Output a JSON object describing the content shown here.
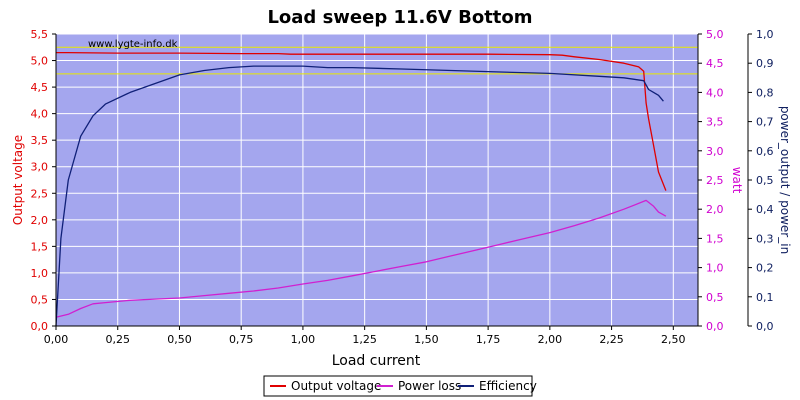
{
  "chart_data": {
    "type": "line",
    "title": "Load sweep 11.6V Bottom",
    "watermark": "www.lygte-info.dk",
    "xlabel": "Load current",
    "ylabel_left": "Output voltage",
    "ylabel_right1": "watt",
    "ylabel_right2": "power_output / power_in",
    "xlim": [
      0,
      2.6
    ],
    "ylim_left": [
      0,
      5.5
    ],
    "ylim_right1": [
      0,
      5.0
    ],
    "ylim_right2": [
      0,
      1.0
    ],
    "x_ticks": [
      "0,00",
      "0,25",
      "0,50",
      "0,75",
      "1,00",
      "1,25",
      "1,50",
      "1,75",
      "2,00",
      "2,25",
      "2,50"
    ],
    "y_left_ticks": [
      "0,0",
      "0,5",
      "1,0",
      "1,5",
      "2,0",
      "2,5",
      "3,0",
      "3,5",
      "4,0",
      "4,5",
      "5,0",
      "5,5"
    ],
    "y_right1_ticks": [
      "0,0",
      "0,5",
      "1,0",
      "1,5",
      "2,0",
      "2,5",
      "3,0",
      "3,5",
      "4,0",
      "4,5",
      "5,0"
    ],
    "y_right2_ticks": [
      "0,0",
      "0,1",
      "0,2",
      "0,3",
      "0,4",
      "0,5",
      "0,6",
      "0,7",
      "0,8",
      "0,9",
      "1,0"
    ],
    "reference_lines_left": [
      5.25,
      4.75
    ],
    "grid": true,
    "legend_position": "bottom",
    "colors": {
      "plot_bg": "#a4a6ee",
      "grid": "#ffffff",
      "reference": "#e8e800",
      "voltage": "#e00000",
      "power": "#d020d0",
      "efficiency": "#102078",
      "left_axis": "#e00000",
      "right1_axis": "#d000d0",
      "right2_axis": "#102060"
    },
    "series": [
      {
        "name": "Output voltage",
        "axis": "left",
        "x": [
          0.0,
          0.05,
          0.25,
          0.5,
          0.75,
          0.9,
          0.95,
          1.0,
          1.25,
          1.5,
          1.75,
          2.0,
          2.05,
          2.1,
          2.2,
          2.3,
          2.36,
          2.38,
          2.39,
          2.4,
          2.42,
          2.44,
          2.47
        ],
        "y": [
          5.15,
          5.15,
          5.14,
          5.14,
          5.13,
          5.13,
          5.12,
          5.12,
          5.12,
          5.12,
          5.12,
          5.11,
          5.1,
          5.07,
          5.02,
          4.95,
          4.88,
          4.8,
          4.2,
          3.9,
          3.4,
          2.9,
          2.55
        ]
      },
      {
        "name": "Power loss",
        "axis": "right1",
        "x": [
          0.0,
          0.05,
          0.1,
          0.15,
          0.2,
          0.3,
          0.4,
          0.5,
          0.6,
          0.7,
          0.8,
          0.9,
          1.0,
          1.1,
          1.2,
          1.3,
          1.4,
          1.5,
          1.6,
          1.7,
          1.8,
          1.9,
          2.0,
          2.1,
          2.2,
          2.3,
          2.39,
          2.42,
          2.44,
          2.47
        ],
        "y": [
          0.15,
          0.2,
          0.3,
          0.38,
          0.4,
          0.44,
          0.46,
          0.48,
          0.52,
          0.56,
          0.6,
          0.65,
          0.72,
          0.78,
          0.86,
          0.94,
          1.02,
          1.1,
          1.2,
          1.3,
          1.4,
          1.5,
          1.6,
          1.72,
          1.85,
          2.0,
          2.15,
          2.05,
          1.95,
          1.88
        ]
      },
      {
        "name": "Efficiency",
        "axis": "right2",
        "x": [
          0.0,
          0.02,
          0.05,
          0.1,
          0.15,
          0.2,
          0.3,
          0.4,
          0.5,
          0.6,
          0.7,
          0.8,
          0.9,
          1.0,
          1.1,
          1.2,
          1.4,
          1.6,
          1.8,
          2.0,
          2.2,
          2.3,
          2.38,
          2.4,
          2.42,
          2.44,
          2.46
        ],
        "y": [
          0.0,
          0.3,
          0.5,
          0.65,
          0.72,
          0.76,
          0.8,
          0.83,
          0.86,
          0.875,
          0.885,
          0.89,
          0.89,
          0.89,
          0.885,
          0.885,
          0.88,
          0.875,
          0.87,
          0.865,
          0.855,
          0.85,
          0.84,
          0.81,
          0.8,
          0.79,
          0.77
        ]
      }
    ]
  }
}
